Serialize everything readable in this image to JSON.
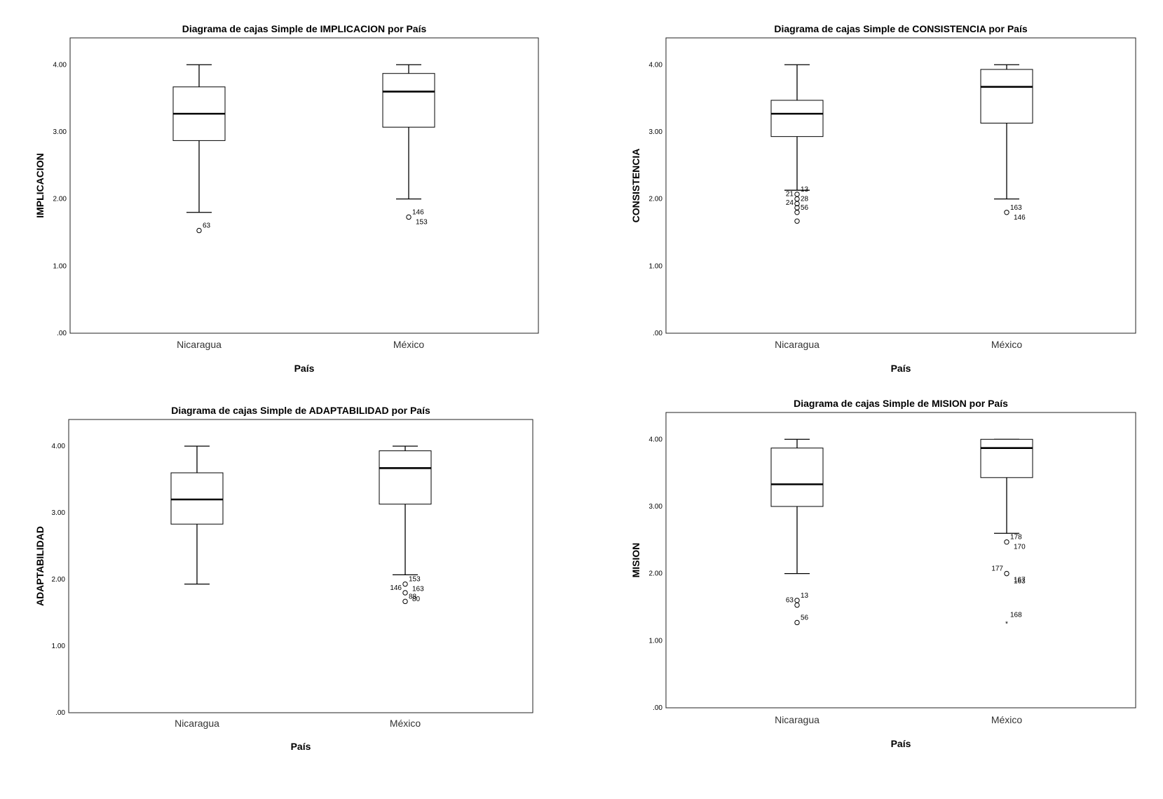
{
  "chart_data": [
    {
      "type": "boxplot",
      "title": "Diagrama de cajas Simple de IMPLICACION por País",
      "xlabel": "País",
      "ylabel": "IMPLICACION",
      "ylim": [
        0,
        4.4
      ],
      "yticks": [
        ".00",
        "1.00",
        "2.00",
        "3.00",
        "4.00"
      ],
      "categories": [
        "Nicaragua",
        "México"
      ],
      "boxes": [
        {
          "category": "Nicaragua",
          "min": 1.8,
          "q1": 2.87,
          "median": 3.27,
          "q3": 3.67,
          "max": 4.0,
          "outliers": [
            {
              "value": 1.53,
              "label": "63",
              "kind": "circle"
            }
          ]
        },
        {
          "category": "México",
          "min": 2.0,
          "q1": 3.07,
          "median": 3.6,
          "q3": 3.87,
          "max": 4.0,
          "outliers": [
            {
              "value": 1.73,
              "label": "146",
              "kind": "circle"
            },
            {
              "value": 1.73,
              "label": "153",
              "kind": "label"
            }
          ]
        }
      ]
    },
    {
      "type": "boxplot",
      "title": "Diagrama de cajas Simple de CONSISTENCIA por País",
      "xlabel": "País",
      "ylabel": "CONSISTENCIA",
      "ylim": [
        0,
        4.4
      ],
      "yticks": [
        ".00",
        "1.00",
        "2.00",
        "3.00",
        "4.00"
      ],
      "categories": [
        "Nicaragua",
        "México"
      ],
      "boxes": [
        {
          "category": "Nicaragua",
          "min": 2.13,
          "q1": 2.93,
          "median": 3.27,
          "q3": 3.47,
          "max": 4.0,
          "outliers": [
            {
              "value": 2.07,
              "label": "13",
              "kind": "circle"
            },
            {
              "value": 2.0,
              "label": "21",
              "kind": "circle"
            },
            {
              "value": 1.93,
              "label": "28",
              "kind": "circle"
            },
            {
              "value": 1.87,
              "label": "24",
              "kind": "circle"
            },
            {
              "value": 1.8,
              "label": "56",
              "kind": "circle"
            },
            {
              "value": 1.67,
              "label": "",
              "kind": "circle"
            }
          ]
        },
        {
          "category": "México",
          "min": 2.0,
          "q1": 3.13,
          "median": 3.67,
          "q3": 3.93,
          "max": 4.0,
          "outliers": [
            {
              "value": 1.8,
              "label": "163",
              "kind": "circle"
            },
            {
              "value": 1.8,
              "label": "146",
              "kind": "label"
            }
          ]
        }
      ]
    },
    {
      "type": "boxplot",
      "title": "Diagrama de cajas Simple de ADAPTABILIDAD por País",
      "xlabel": "País",
      "ylabel": "ADAPTABILIDAD",
      "ylim": [
        0,
        4.4
      ],
      "yticks": [
        ".00",
        "1.00",
        "2.00",
        "3.00",
        "4.00"
      ],
      "categories": [
        "Nicaragua",
        "México"
      ],
      "boxes": [
        {
          "category": "Nicaragua",
          "min": 1.93,
          "q1": 2.83,
          "median": 3.2,
          "q3": 3.6,
          "max": 4.0,
          "outliers": []
        },
        {
          "category": "México",
          "min": 2.07,
          "q1": 3.13,
          "median": 3.67,
          "q3": 3.93,
          "max": 4.0,
          "outliers": [
            {
              "value": 1.93,
              "label": "153",
              "kind": "circle"
            },
            {
              "value": 1.93,
              "label": "163",
              "kind": "label"
            },
            {
              "value": 1.8,
              "label": "146",
              "kind": "circle"
            },
            {
              "value": 1.8,
              "label": "80",
              "kind": "label"
            },
            {
              "value": 1.67,
              "label": "88",
              "kind": "circle"
            }
          ]
        }
      ]
    },
    {
      "type": "boxplot",
      "title": "Diagrama de cajas Simple de MISION por País",
      "xlabel": "País",
      "ylabel": "MISION",
      "ylim": [
        0,
        4.4
      ],
      "yticks": [
        ".00",
        "1.00",
        "2.00",
        "3.00",
        "4.00"
      ],
      "categories": [
        "Nicaragua",
        "México"
      ],
      "boxes": [
        {
          "category": "Nicaragua",
          "min": 2.0,
          "q1": 3.0,
          "median": 3.33,
          "q3": 3.87,
          "max": 4.0,
          "outliers": [
            {
              "value": 1.6,
              "label": "13",
              "kind": "circle"
            },
            {
              "value": 1.53,
              "label": "63",
              "kind": "circle"
            },
            {
              "value": 1.27,
              "label": "56",
              "kind": "circle"
            }
          ]
        },
        {
          "category": "México",
          "min": 2.6,
          "q1": 3.43,
          "median": 3.87,
          "q3": 4.0,
          "max": 4.0,
          "outliers": [
            {
              "value": 2.47,
              "label": "178",
              "kind": "circle"
            },
            {
              "value": 2.47,
              "label": "170",
              "kind": "label"
            },
            {
              "value": 2.0,
              "label": "177",
              "kind": "circle"
            },
            {
              "value": 2.0,
              "label": "167",
              "kind": "label"
            },
            {
              "value": 2.0,
              "label": "163",
              "kind": "label"
            },
            {
              "value": 1.27,
              "label": "168",
              "kind": "star"
            }
          ]
        }
      ]
    }
  ]
}
